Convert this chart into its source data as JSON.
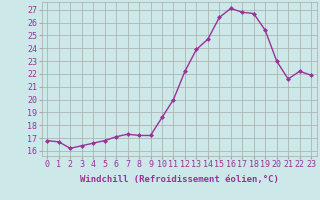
{
  "x": [
    0,
    1,
    2,
    3,
    4,
    5,
    6,
    7,
    8,
    9,
    10,
    11,
    12,
    13,
    14,
    15,
    16,
    17,
    18,
    19,
    20,
    21,
    22,
    23
  ],
  "y": [
    16.8,
    16.7,
    16.2,
    16.4,
    16.6,
    16.8,
    17.1,
    17.3,
    17.2,
    17.2,
    18.6,
    20.0,
    22.2,
    23.9,
    24.7,
    26.4,
    27.1,
    26.8,
    26.7,
    25.4,
    23.0,
    21.6,
    22.2,
    21.9
  ],
  "line_color": "#993399",
  "marker": "D",
  "markersize": 2.0,
  "linewidth": 1.0,
  "xlabel": "Windchill (Refroidissement éolien,°C)",
  "xlabel_fontsize": 6.5,
  "ylabel_ticks": [
    16,
    17,
    18,
    19,
    20,
    21,
    22,
    23,
    24,
    25,
    26,
    27
  ],
  "xlim": [
    -0.5,
    23.5
  ],
  "ylim": [
    15.6,
    27.6
  ],
  "bg_color": "#cce8e8",
  "grid_color": "#aaaaaa",
  "tick_fontsize": 6.0
}
